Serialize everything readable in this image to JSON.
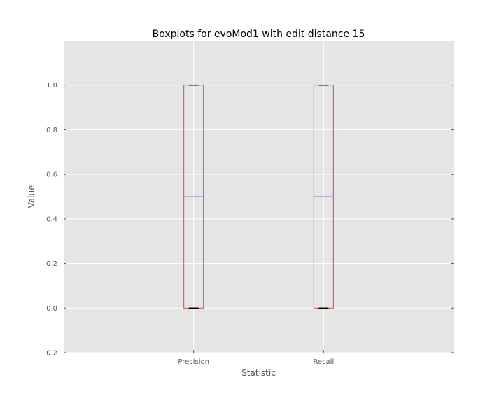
{
  "chart_data": {
    "type": "box",
    "title": "Boxplots for evoMod1 with edit distance 15",
    "xlabel": "Statistic",
    "ylabel": "Value",
    "categories": [
      "Precision",
      "Recall"
    ],
    "boxes": [
      {
        "category": "Precision",
        "min": 0.0,
        "q1": 0.0,
        "median": 0.5,
        "q3": 1.0,
        "max": 1.0
      },
      {
        "category": "Recall",
        "min": 0.0,
        "q1": 0.0,
        "median": 0.5,
        "q3": 1.0,
        "max": 1.0
      }
    ],
    "ylim": [
      -0.2,
      1.2
    ],
    "yticks": [
      -0.2,
      0.0,
      0.2,
      0.4,
      0.6,
      0.8,
      1.0
    ],
    "ytick_labels": [
      "−0.2",
      "0.0",
      "0.2",
      "0.4",
      "0.6",
      "0.8",
      "1.0"
    ],
    "grid": true,
    "colors": {
      "plot_background": "#e5e5e5",
      "grid": "#ffffff",
      "box": "#e24a33",
      "median": "#8c7cd6",
      "whisker_cap": "#000000"
    }
  }
}
